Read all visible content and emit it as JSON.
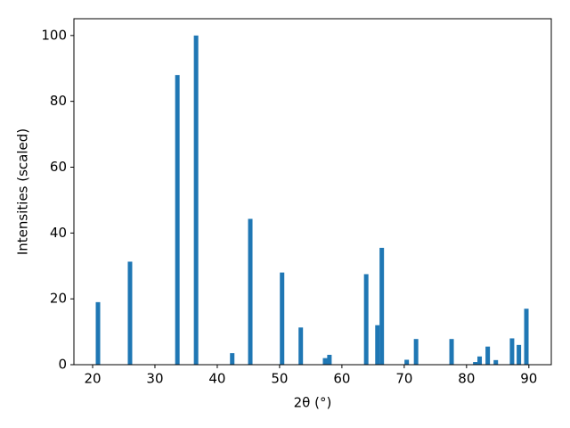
{
  "chart_data": {
    "type": "bar",
    "x_label": "2θ (°)",
    "y_label": "Intensities (scaled)",
    "color": "#1f77b4",
    "x": [
      20.86,
      26.0,
      33.6,
      36.6,
      42.4,
      45.3,
      50.4,
      53.4,
      57.3,
      58.0,
      63.9,
      65.7,
      66.4,
      70.4,
      71.9,
      77.6,
      81.4,
      82.1,
      83.4,
      84.7,
      87.3,
      88.4,
      89.6
    ],
    "values": [
      19,
      31.3,
      88,
      100,
      3.5,
      44.3,
      28,
      11.3,
      2,
      3,
      27.5,
      12,
      35.5,
      1.5,
      7.8,
      7.8,
      0.8,
      2.5,
      5.5,
      1.4,
      8,
      6,
      17
    ],
    "xlim": [
      17,
      93.6
    ],
    "ylim": [
      0,
      105.1
    ],
    "xticks": [
      20,
      30,
      40,
      50,
      60,
      70,
      80,
      90
    ],
    "yticks": [
      0,
      20,
      40,
      60,
      80,
      100
    ]
  }
}
